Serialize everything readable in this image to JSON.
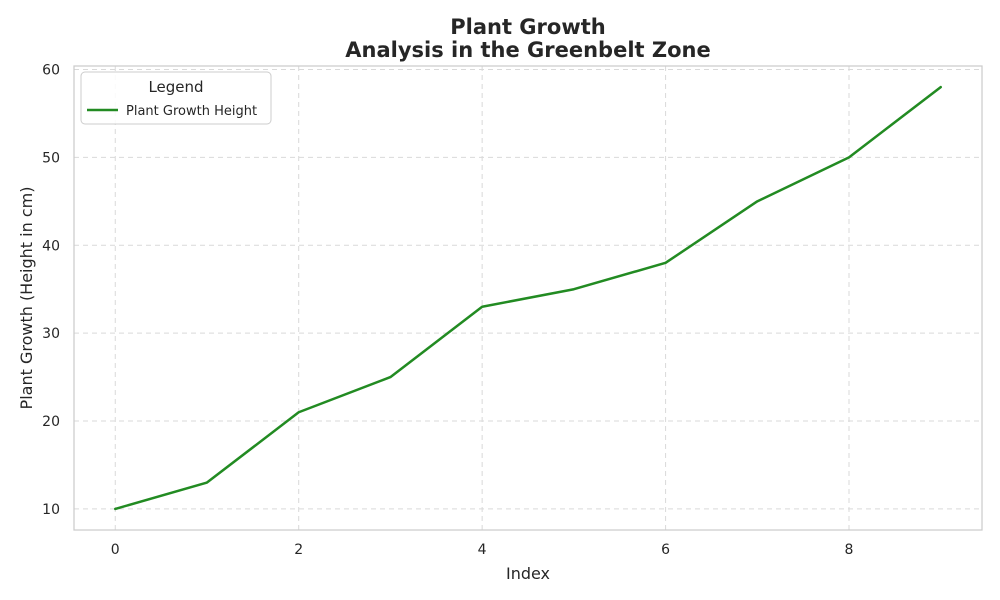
{
  "chart_data": {
    "type": "line",
    "title_lines": [
      "Plant Growth",
      "Analysis in the Greenbelt Zone"
    ],
    "xlabel": "Index",
    "ylabel": "Plant Growth (Height in cm)",
    "xlim": [
      -0.45,
      9.45
    ],
    "ylim": [
      7.6,
      60.4
    ],
    "x_ticks": [
      0,
      2,
      4,
      6,
      8
    ],
    "y_ticks": [
      10,
      20,
      30,
      40,
      50,
      60
    ],
    "grid": true,
    "legend": {
      "title": "Legend",
      "placement": "upper-left"
    },
    "series": [
      {
        "name": "Plant Growth Height",
        "color": "#228b22",
        "x": [
          0,
          1,
          2,
          3,
          4,
          5,
          6,
          7,
          8,
          9
        ],
        "values": [
          10,
          13,
          21,
          25,
          33,
          35,
          38,
          45,
          50,
          58
        ]
      }
    ]
  }
}
